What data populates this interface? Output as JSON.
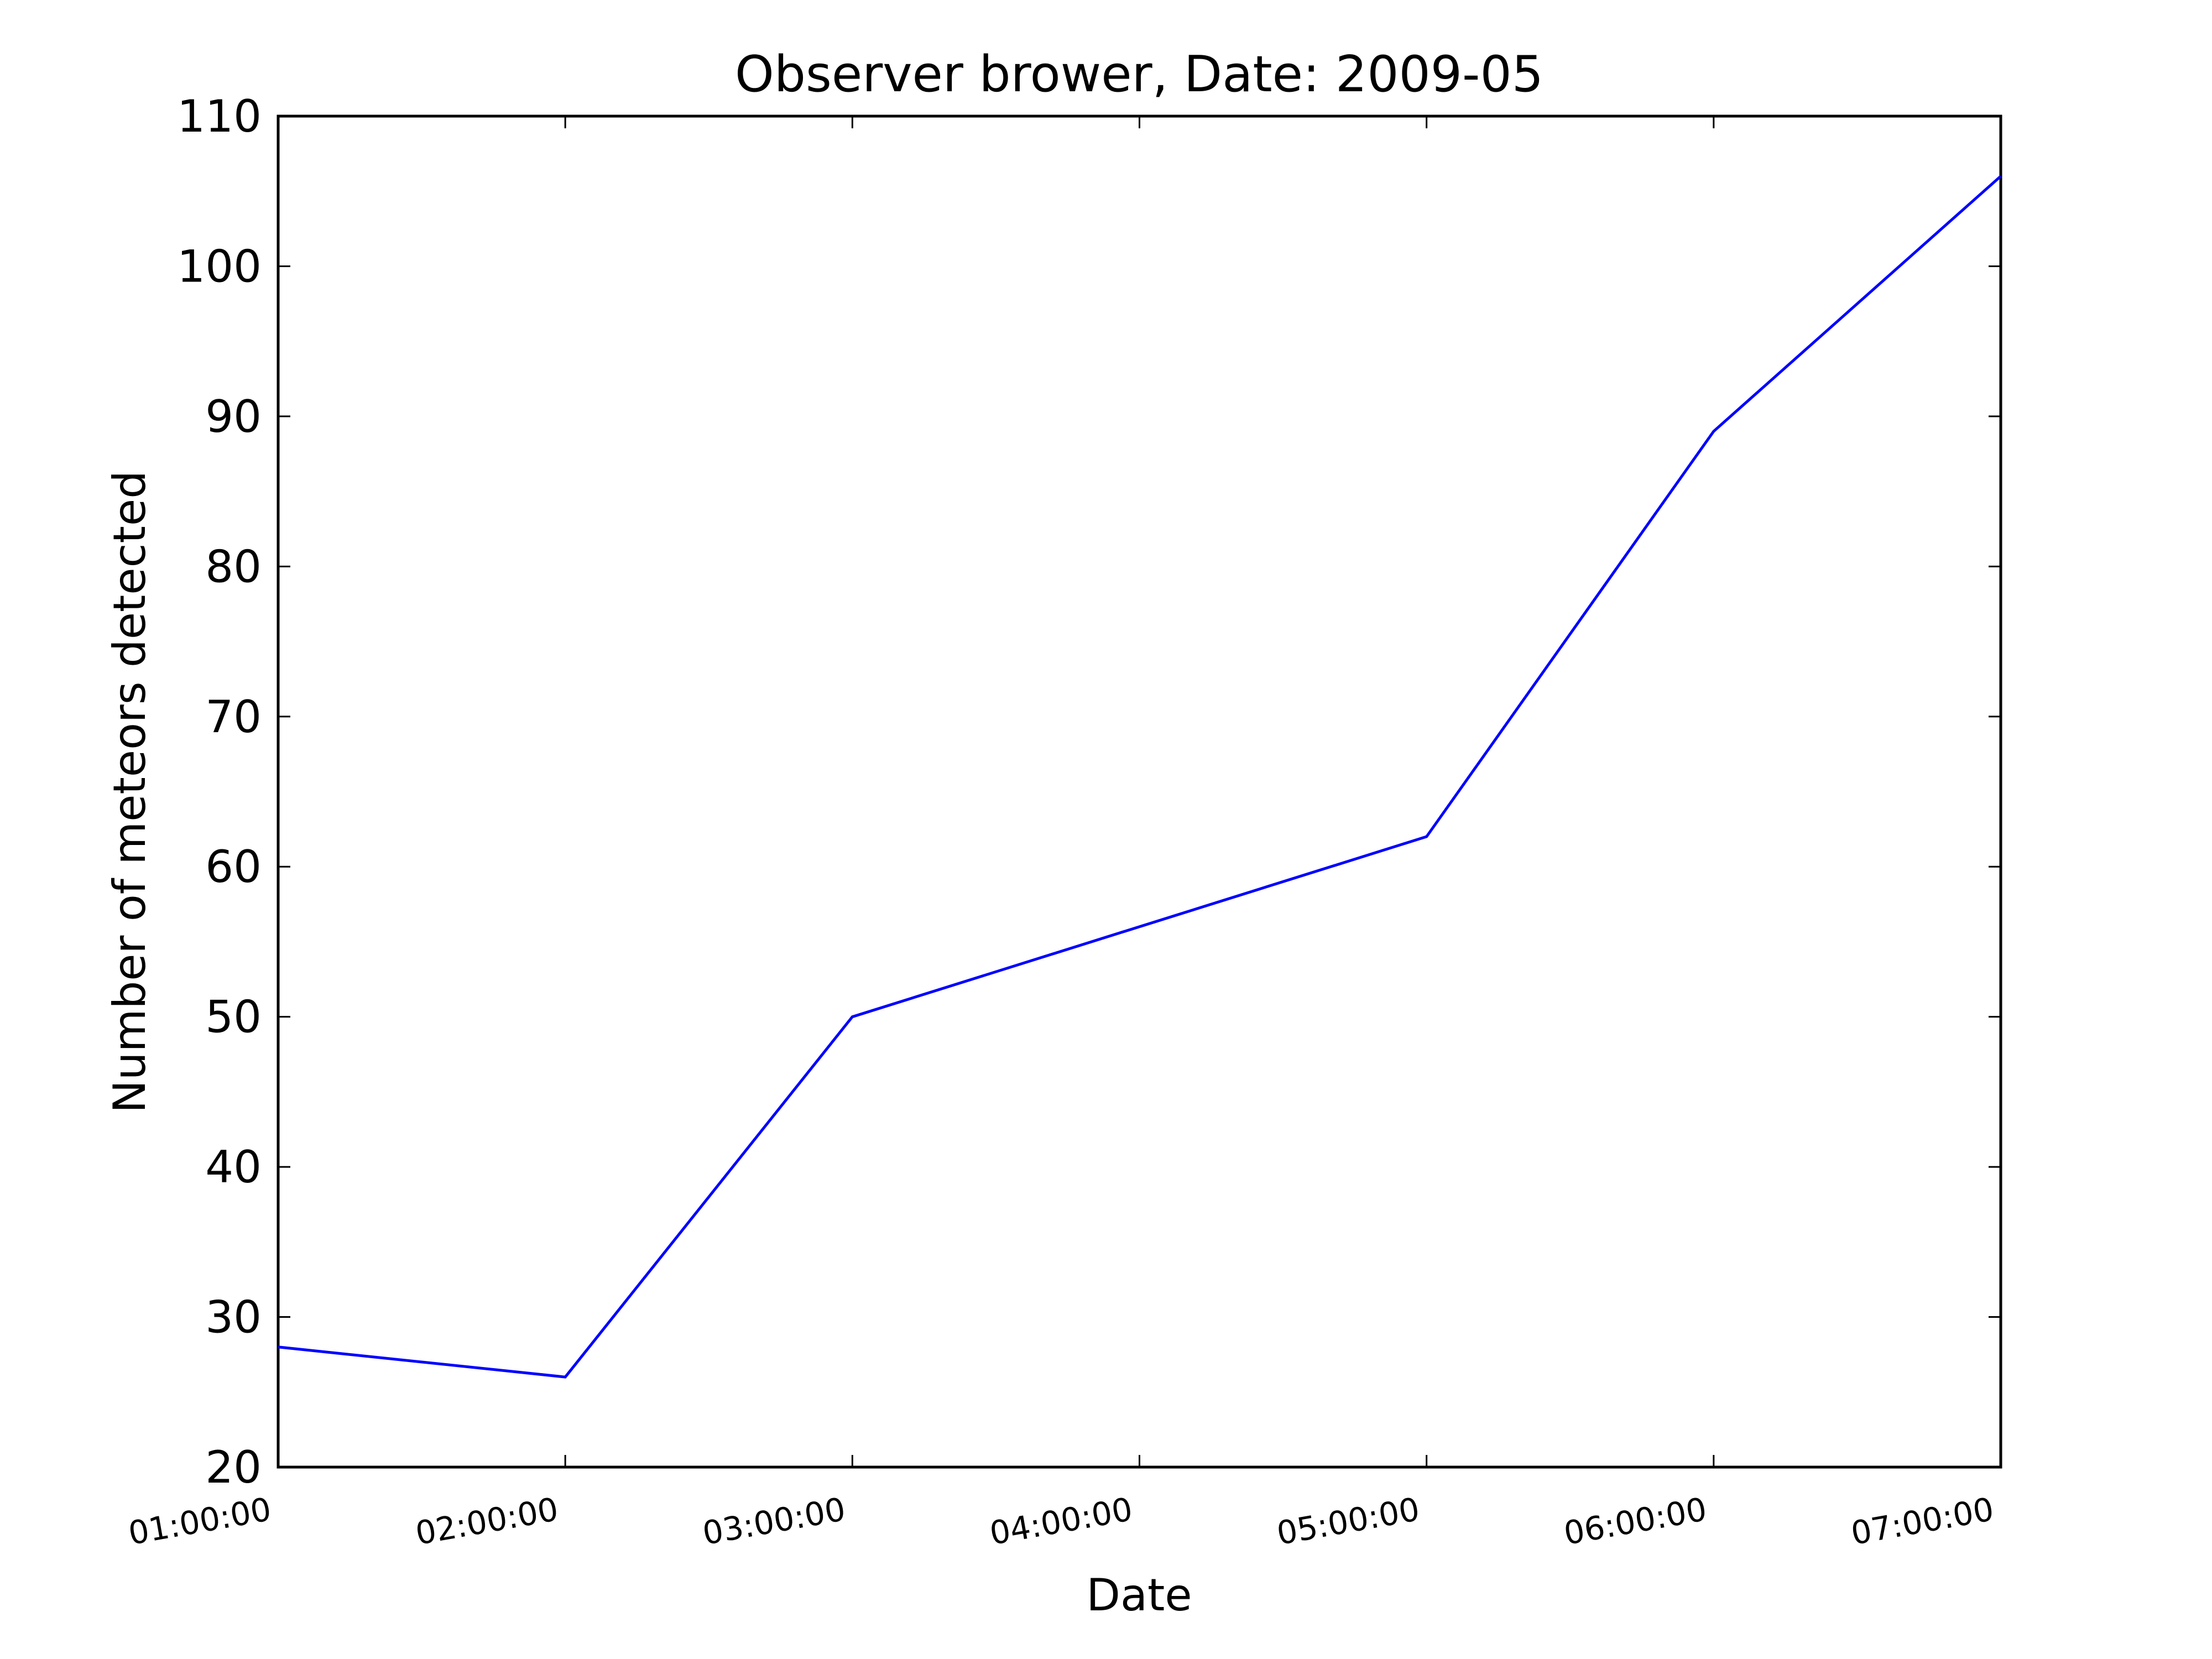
{
  "chart_data": {
    "type": "line",
    "title": "Observer brower, Date: 2009-05",
    "xlabel": "Date",
    "ylabel": "Number of meteors detected",
    "x": [
      "01:00:00",
      "02:00:00",
      "03:00:00",
      "04:00:00",
      "05:00:00",
      "06:00:00",
      "07:00:00"
    ],
    "xticks": [
      "01:00:00",
      "02:00:00",
      "03:00:00",
      "04:00:00",
      "05:00:00",
      "06:00:00",
      "07:00:00"
    ],
    "series": [
      {
        "x": [
          "01:00:00",
          "02:00:00",
          "03:00:00",
          "05:00:00",
          "06:00:00",
          "07:00:00"
        ],
        "values": [
          28,
          26,
          50,
          62,
          89,
          106
        ],
        "color": "#0000ff"
      }
    ],
    "ylim": [
      20,
      110
    ],
    "yticks": [
      20,
      30,
      40,
      50,
      60,
      70,
      80,
      90,
      100,
      110
    ],
    "grid": false,
    "legend": "none"
  }
}
